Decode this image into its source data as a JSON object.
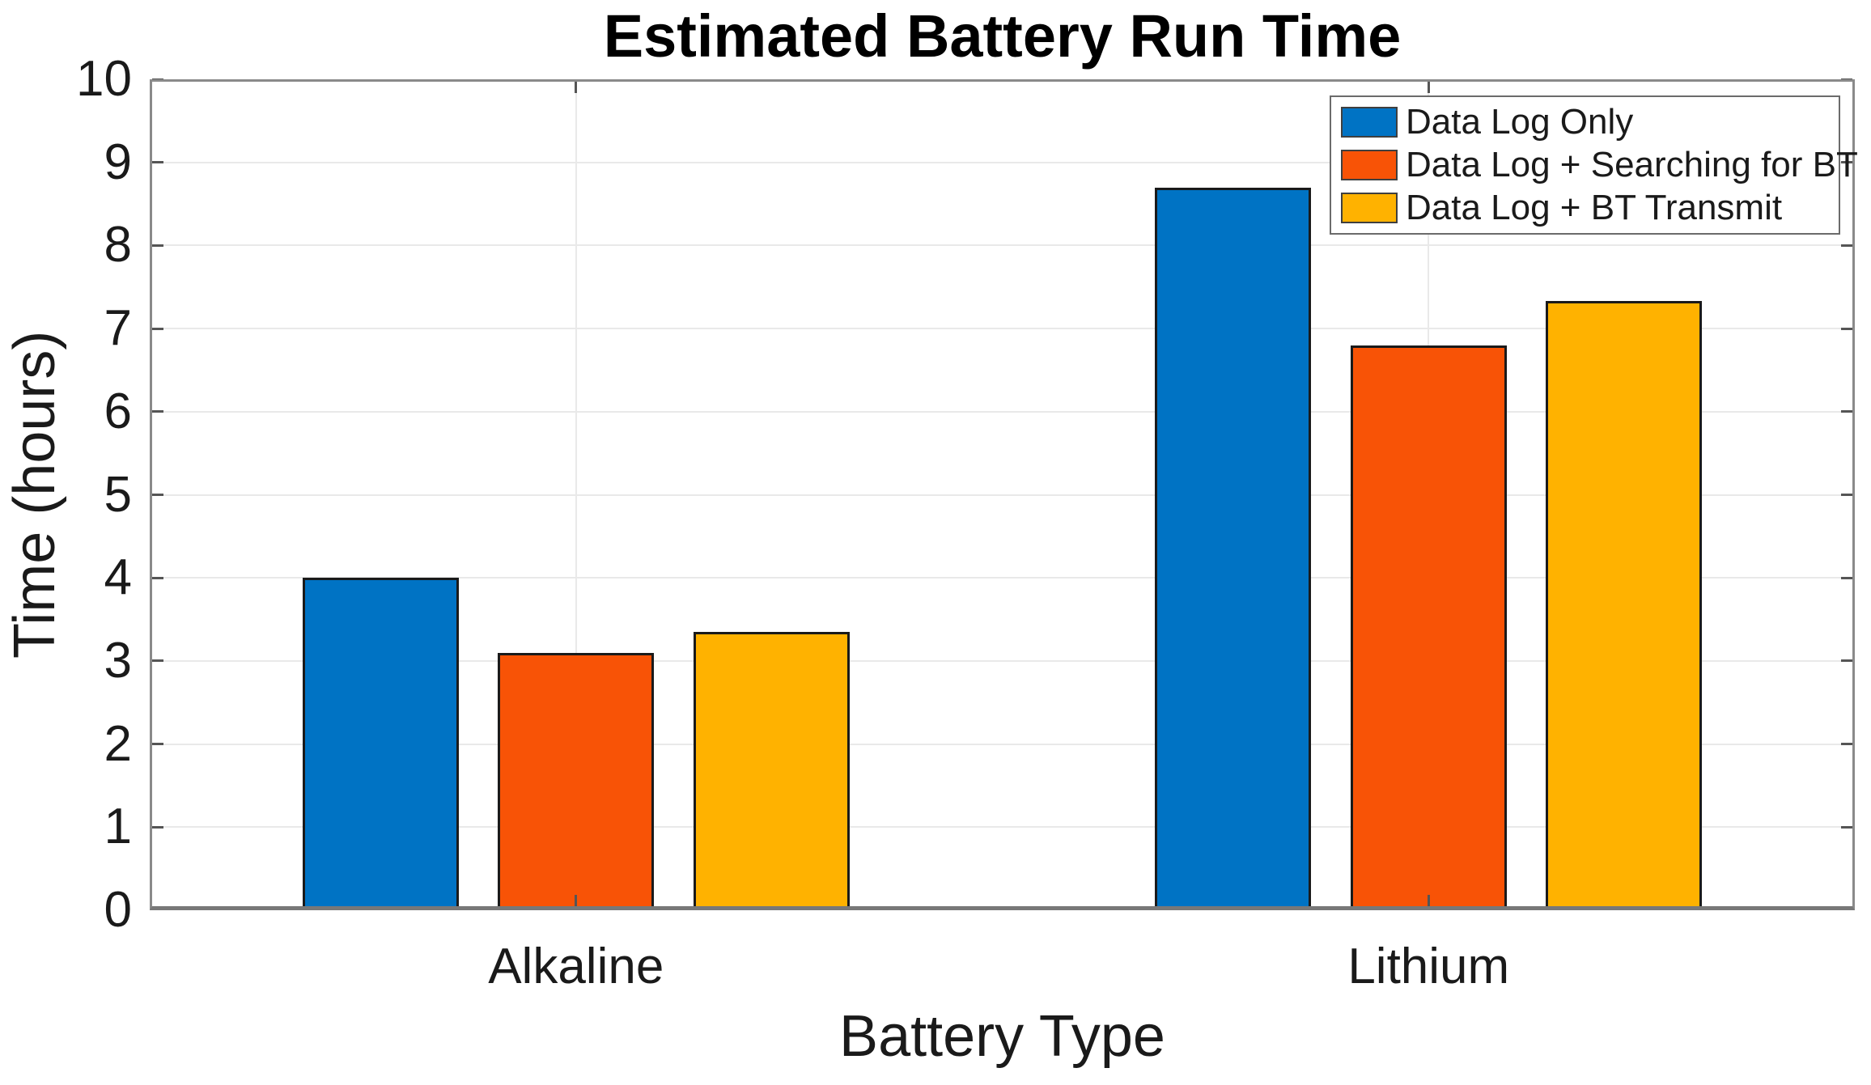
{
  "chart_data": {
    "type": "bar",
    "title": "Estimated Battery Run Time",
    "xlabel": "Battery Type",
    "ylabel": "Time (hours)",
    "categories": [
      "Alkaline",
      "Lithium"
    ],
    "series": [
      {
        "name": "Data Log Only",
        "color": "#0073C4",
        "values": [
          4.0,
          8.7
        ]
      },
      {
        "name": "Data Log + Searching for BT",
        "color": "#F85306",
        "values": [
          3.1,
          6.8
        ]
      },
      {
        "name": "Data Log + BT Transmit",
        "color": "#FFB200",
        "values": [
          3.35,
          7.33
        ]
      }
    ],
    "ylim": [
      0,
      10
    ],
    "yticks": [
      0,
      1,
      2,
      3,
      4,
      5,
      6,
      7,
      8,
      9,
      10
    ],
    "grid": true,
    "legend_position": "top-right",
    "bar_edge_color": "#1a1a1a"
  }
}
